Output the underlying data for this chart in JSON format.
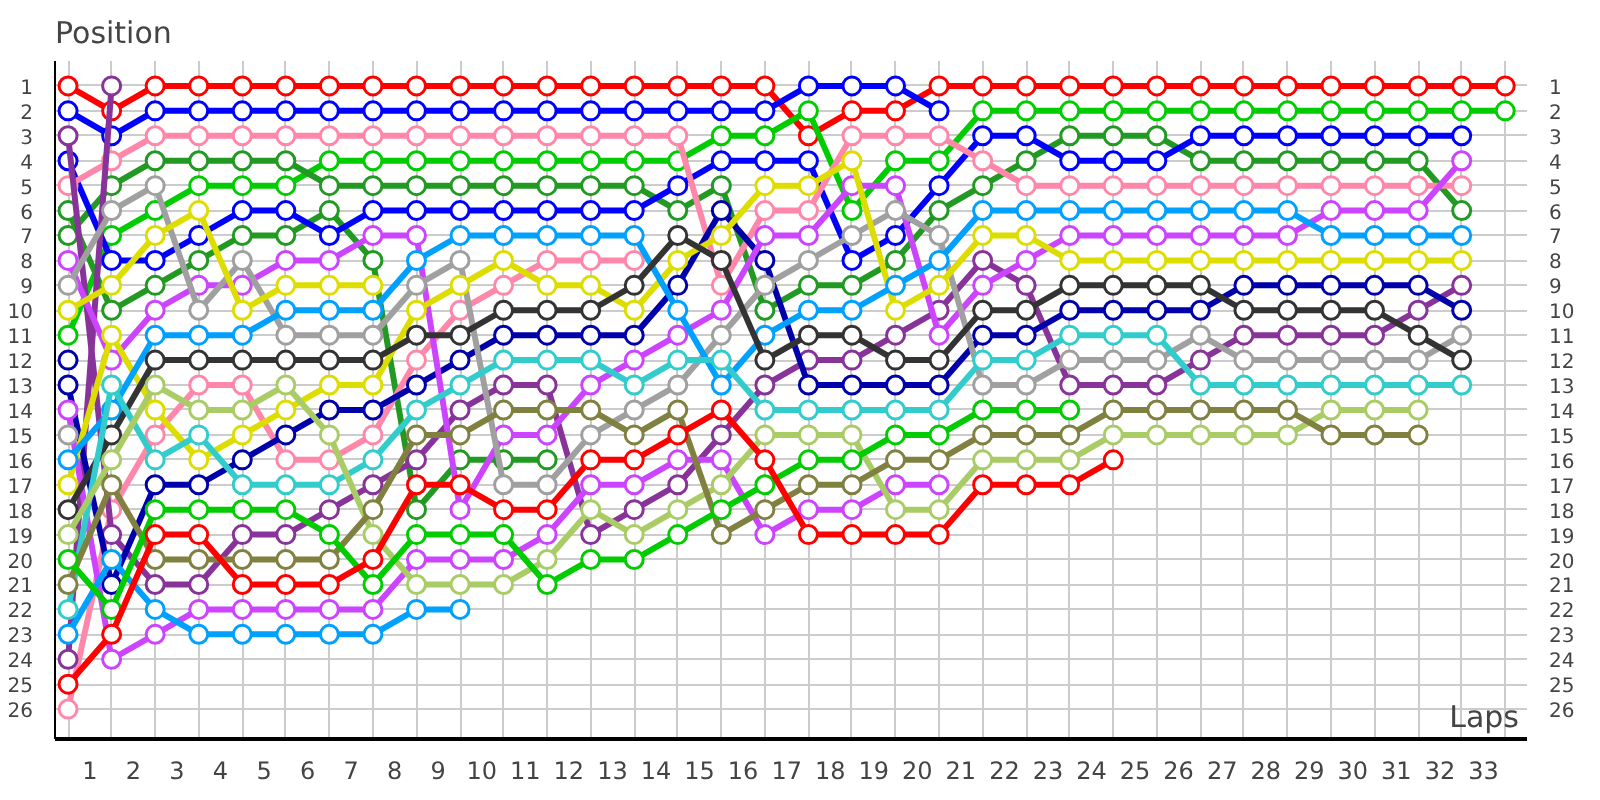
{
  "chart_data": {
    "type": "line",
    "ylabel": "Position",
    "xlabel": "Laps",
    "marker": "circle",
    "line_style": "solid",
    "grid": true,
    "x": [
      0,
      1,
      2,
      3,
      4,
      5,
      6,
      7,
      8,
      9,
      10,
      11,
      12,
      13,
      14,
      15,
      16,
      17,
      18,
      19,
      20,
      21,
      22,
      23,
      24,
      25,
      26,
      27,
      28,
      29,
      30,
      31,
      32,
      33
    ],
    "xlim": [
      -0.3,
      33.5
    ],
    "ylim": [
      27.2,
      0
    ],
    "y2lim": [
      27.2,
      0
    ],
    "xticks": [
      {
        "value": 0,
        "label": null
      },
      {
        "value": 1,
        "label": null
      },
      {
        "value": 2,
        "label": null
      },
      {
        "value": 3,
        "label": null
      },
      {
        "value": 4,
        "label": null
      },
      {
        "value": 5,
        "label": null
      },
      {
        "value": 6,
        "label": null
      },
      {
        "value": 7,
        "label": null
      },
      {
        "value": 8,
        "label": null
      },
      {
        "value": 9,
        "label": null
      },
      {
        "value": 10,
        "label": null
      },
      {
        "value": 11,
        "label": null
      },
      {
        "value": 12,
        "label": null
      },
      {
        "value": 13,
        "label": null
      },
      {
        "value": 14,
        "label": null
      },
      {
        "value": 15,
        "label": null
      },
      {
        "value": 16,
        "label": null
      },
      {
        "value": 17,
        "label": null
      },
      {
        "value": 18,
        "label": null
      },
      {
        "value": 19,
        "label": null
      },
      {
        "value": 20,
        "label": null
      },
      {
        "value": 21,
        "label": null
      },
      {
        "value": 22,
        "label": null
      },
      {
        "value": 23,
        "label": null
      },
      {
        "value": 24,
        "label": null
      },
      {
        "value": 25,
        "label": null
      },
      {
        "value": 26,
        "label": null
      },
      {
        "value": 27,
        "label": null
      },
      {
        "value": 28,
        "label": null
      },
      {
        "value": 29,
        "label": null
      },
      {
        "value": 30,
        "label": null
      },
      {
        "value": 31,
        "label": null
      },
      {
        "value": 32,
        "label": null
      },
      {
        "value": 33,
        "label": null
      },
      {
        "value": 0.5,
        "label": "1"
      },
      {
        "value": 1.5,
        "label": "2"
      },
      {
        "value": 2.5,
        "label": "3"
      },
      {
        "value": 3.5,
        "label": "4"
      },
      {
        "value": 4.5,
        "label": "5"
      },
      {
        "value": 5.5,
        "label": "6"
      },
      {
        "value": 6.5,
        "label": "7"
      },
      {
        "value": 7.5,
        "label": "8"
      },
      {
        "value": 8.5,
        "label": "9"
      },
      {
        "value": 9.5,
        "label": "10"
      },
      {
        "value": 10.5,
        "label": "11"
      },
      {
        "value": 11.5,
        "label": "12"
      },
      {
        "value": 12.5,
        "label": "13"
      },
      {
        "value": 13.5,
        "label": "14"
      },
      {
        "value": 14.5,
        "label": "15"
      },
      {
        "value": 15.5,
        "label": "16"
      },
      {
        "value": 16.5,
        "label": "17"
      },
      {
        "value": 17.5,
        "label": "18"
      },
      {
        "value": 18.5,
        "label": "19"
      },
      {
        "value": 19.5,
        "label": "20"
      },
      {
        "value": 20.5,
        "label": "21"
      },
      {
        "value": 21.5,
        "label": "22"
      },
      {
        "value": 22.5,
        "label": "23"
      },
      {
        "value": 23.5,
        "label": "24"
      },
      {
        "value": 24.5,
        "label": "25"
      },
      {
        "value": 25.5,
        "label": "26"
      },
      {
        "value": 26.5,
        "label": "27"
      },
      {
        "value": 27.5,
        "label": "28"
      },
      {
        "value": 28.5,
        "label": "29"
      },
      {
        "value": 29.5,
        "label": "30"
      },
      {
        "value": 30.5,
        "label": "31"
      },
      {
        "value": 31.5,
        "label": "32"
      },
      {
        "value": 32.5,
        "label": "33"
      }
    ],
    "yticks": [
      1,
      2,
      3,
      4,
      5,
      6,
      7,
      8,
      9,
      10,
      11,
      12,
      13,
      14,
      15,
      16,
      17,
      18,
      19,
      20,
      21,
      22,
      23,
      24,
      25,
      26
    ],
    "y2ticks": [
      1,
      2,
      3,
      4,
      5,
      6,
      7,
      8,
      9,
      10,
      11,
      12,
      13,
      14,
      15,
      16,
      17,
      18,
      19,
      20,
      21,
      22,
      23,
      24,
      25,
      26
    ],
    "series": [
      {
        "color": "#ff0000",
        "values": [
          1,
          2,
          1,
          1,
          1,
          1,
          1,
          1,
          1,
          1,
          1,
          1,
          1,
          1,
          1,
          1,
          1,
          3,
          2,
          2,
          1,
          1,
          1,
          1,
          1,
          1,
          1,
          1,
          1,
          1,
          1,
          1,
          1,
          1
        ]
      },
      {
        "color": "#0000ff",
        "values": [
          2,
          3,
          2,
          2,
          2,
          2,
          2,
          2,
          2,
          2,
          2,
          2,
          2,
          2,
          2,
          2,
          2,
          1,
          1,
          1,
          2,
          null,
          null,
          null,
          null,
          null,
          null,
          null,
          null,
          null,
          null,
          null,
          null,
          null
        ]
      },
      {
        "color": "#00cc00",
        "values": [
          11,
          7,
          6,
          5,
          5,
          5,
          4,
          4,
          4,
          4,
          4,
          4,
          4,
          4,
          4,
          3,
          3,
          2,
          6,
          4,
          4,
          2,
          2,
          2,
          2,
          2,
          2,
          2,
          2,
          2,
          2,
          2,
          2,
          2
        ]
      },
      {
        "color": "#229922",
        "values": [
          7,
          5,
          4,
          4,
          4,
          4,
          5,
          5,
          5,
          5,
          5,
          5,
          5,
          5,
          6,
          5,
          10,
          9,
          9,
          8,
          6,
          5,
          4,
          3,
          3,
          3,
          4,
          4,
          4,
          4,
          4,
          4,
          6,
          null
        ]
      },
      {
        "color": "#229922",
        "values": [
          6,
          10,
          9,
          8,
          7,
          7,
          6,
          8,
          18,
          16,
          16,
          16,
          null,
          null,
          null,
          null,
          null,
          null,
          null,
          null,
          null,
          null,
          null,
          null,
          null,
          null,
          null,
          null,
          null,
          null,
          null,
          null,
          null,
          null
        ]
      },
      {
        "color": "#0000ff",
        "values": [
          4,
          8,
          8,
          7,
          6,
          6,
          7,
          6,
          6,
          6,
          6,
          6,
          6,
          6,
          5,
          4,
          4,
          4,
          8,
          7,
          5,
          3,
          3,
          4,
          4,
          4,
          3,
          3,
          3,
          3,
          3,
          3,
          3,
          null
        ]
      },
      {
        "color": "#ff88aa",
        "values": [
          5,
          4,
          3,
          3,
          3,
          3,
          3,
          3,
          3,
          3,
          3,
          3,
          3,
          3,
          3,
          9,
          6,
          6,
          3,
          3,
          3,
          4,
          5,
          5,
          5,
          5,
          5,
          5,
          5,
          5,
          5,
          5,
          5,
          null
        ]
      },
      {
        "color": "#ff88aa",
        "values": [
          26,
          18,
          15,
          13,
          13,
          16,
          16,
          15,
          12,
          10,
          9,
          8,
          8,
          8,
          null,
          null,
          null,
          null,
          null,
          null,
          null,
          null,
          null,
          null,
          null,
          null,
          null,
          null,
          null,
          null,
          null,
          null,
          null,
          null
        ]
      },
      {
        "color": "#883399",
        "values": [
          3,
          19,
          21,
          21,
          19,
          19,
          18,
          17,
          16,
          14,
          13,
          13,
          19,
          18,
          17,
          15,
          13,
          12,
          12,
          11,
          10,
          8,
          9,
          13,
          13,
          13,
          12,
          11,
          11,
          11,
          11,
          10,
          9,
          null
        ]
      },
      {
        "color": "#883399",
        "values": [
          24,
          1,
          null,
          null,
          null,
          null,
          null,
          null,
          null,
          null,
          null,
          null,
          null,
          null,
          null,
          null,
          null,
          null,
          null,
          null,
          null,
          null,
          null,
          null,
          null,
          null,
          null,
          null,
          null,
          null,
          null,
          null,
          null,
          null
        ]
      },
      {
        "color": "#0000aa",
        "values": [
          13,
          21,
          17,
          17,
          16,
          15,
          14,
          14,
          13,
          12,
          11,
          11,
          11,
          11,
          9,
          6,
          8,
          13,
          13,
          13,
          13,
          11,
          11,
          10,
          10,
          10,
          10,
          9,
          9,
          9,
          9,
          9,
          10,
          null
        ]
      },
      {
        "color": "#0000aa",
        "values": [
          12,
          null,
          null,
          null,
          null,
          null,
          null,
          null,
          null,
          null,
          null,
          null,
          null,
          null,
          null,
          null,
          null,
          null,
          null,
          null,
          null,
          null,
          null,
          null,
          null,
          null,
          null,
          null,
          null,
          null,
          null,
          null,
          null,
          null
        ]
      },
      {
        "color": "#cc44ff",
        "values": [
          8,
          12,
          10,
          9,
          9,
          8,
          8,
          7,
          7,
          18,
          15,
          15,
          13,
          12,
          11,
          10,
          7,
          7,
          5,
          5,
          11,
          9,
          8,
          7,
          7,
          7,
          7,
          7,
          7,
          6,
          6,
          6,
          4,
          null
        ]
      },
      {
        "color": "#cc44ff",
        "values": [
          14,
          24,
          23,
          22,
          22,
          22,
          22,
          22,
          20,
          20,
          20,
          19,
          17,
          17,
          16,
          16,
          19,
          18,
          18,
          17,
          17,
          null,
          null,
          null,
          null,
          null,
          null,
          null,
          null,
          null,
          null,
          null,
          null,
          null
        ]
      },
      {
        "color": "#a0a0a0",
        "values": [
          9,
          6,
          5,
          10,
          8,
          11,
          11,
          11,
          9,
          8,
          17,
          17,
          15,
          14,
          13,
          11,
          9,
          8,
          7,
          6,
          7,
          13,
          13,
          12,
          12,
          12,
          11,
          12,
          12,
          12,
          12,
          12,
          11,
          null
        ]
      },
      {
        "color": "#a0a0a0",
        "values": [
          15,
          null,
          null,
          null,
          null,
          null,
          null,
          null,
          null,
          null,
          null,
          null,
          null,
          null,
          null,
          null,
          null,
          null,
          null,
          null,
          null,
          null,
          null,
          null,
          null,
          null,
          null,
          null,
          null,
          null,
          null,
          null,
          null,
          null
        ]
      },
      {
        "color": "#dddd00",
        "values": [
          17,
          11,
          14,
          16,
          15,
          14,
          13,
          13,
          10,
          9,
          8,
          9,
          9,
          10,
          8,
          7,
          5,
          5,
          4,
          10,
          9,
          7,
          7,
          8,
          8,
          8,
          8,
          8,
          8,
          8,
          8,
          8,
          8,
          null
        ]
      },
      {
        "color": "#dddd00",
        "values": [
          10,
          9,
          7,
          6,
          10,
          9,
          9,
          9,
          null,
          null,
          null,
          null,
          null,
          null,
          null,
          null,
          null,
          null,
          null,
          null,
          null,
          null,
          null,
          null,
          null,
          null,
          null,
          null,
          null,
          null,
          null,
          null,
          null,
          null
        ]
      },
      {
        "color": "#00a0ff",
        "values": [
          16,
          14,
          11,
          11,
          11,
          10,
          10,
          10,
          8,
          7,
          7,
          7,
          7,
          7,
          10,
          13,
          11,
          10,
          10,
          9,
          8,
          6,
          6,
          6,
          6,
          6,
          6,
          6,
          6,
          7,
          7,
          7,
          7,
          null
        ]
      },
      {
        "color": "#00a0ff",
        "values": [
          23,
          20,
          22,
          23,
          23,
          23,
          23,
          23,
          22,
          22,
          null,
          null,
          null,
          null,
          null,
          null,
          null,
          null,
          null,
          null,
          null,
          null,
          null,
          null,
          null,
          null,
          null,
          null,
          null,
          null,
          null,
          null,
          null,
          null
        ]
      },
      {
        "color": "#333333",
        "values": [
          18,
          15,
          12,
          12,
          12,
          12,
          12,
          12,
          11,
          11,
          10,
          10,
          10,
          9,
          7,
          8,
          12,
          11,
          11,
          12,
          12,
          10,
          10,
          9,
          9,
          9,
          9,
          10,
          10,
          10,
          10,
          11,
          12,
          null
        ]
      },
      {
        "color": "#33cccc",
        "values": [
          22,
          13,
          16,
          15,
          17,
          17,
          17,
          16,
          14,
          13,
          12,
          12,
          12,
          13,
          12,
          12,
          14,
          14,
          14,
          14,
          14,
          12,
          12,
          11,
          11,
          11,
          13,
          13,
          13,
          13,
          13,
          13,
          13,
          null
        ]
      },
      {
        "color": "#aacc66",
        "values": [
          19,
          16,
          13,
          14,
          14,
          13,
          15,
          19,
          21,
          21,
          21,
          20,
          18,
          19,
          18,
          17,
          15,
          15,
          15,
          18,
          18,
          16,
          16,
          16,
          15,
          15,
          15,
          15,
          15,
          14,
          14,
          14,
          null,
          null
        ]
      },
      {
        "color": "#808040",
        "values": [
          21,
          17,
          20,
          20,
          20,
          20,
          20,
          18,
          15,
          15,
          14,
          14,
          14,
          15,
          14,
          19,
          18,
          17,
          17,
          16,
          16,
          15,
          15,
          15,
          14,
          14,
          14,
          14,
          14,
          15,
          15,
          15,
          null,
          null
        ]
      },
      {
        "color": "#00cc00",
        "values": [
          20,
          22,
          18,
          18,
          18,
          18,
          19,
          21,
          19,
          19,
          19,
          21,
          20,
          20,
          19,
          18,
          17,
          16,
          16,
          15,
          15,
          14,
          14,
          14,
          null,
          null,
          null,
          null,
          null,
          null,
          null,
          null,
          null,
          null
        ]
      },
      {
        "color": "#ff0000",
        "values": [
          25,
          23,
          19,
          19,
          21,
          21,
          21,
          20,
          17,
          17,
          18,
          18,
          16,
          16,
          15,
          14,
          16,
          19,
          19,
          19,
          19,
          17,
          17,
          17,
          16,
          null,
          null,
          null,
          null,
          null,
          null,
          null,
          null,
          null
        ]
      }
    ]
  }
}
